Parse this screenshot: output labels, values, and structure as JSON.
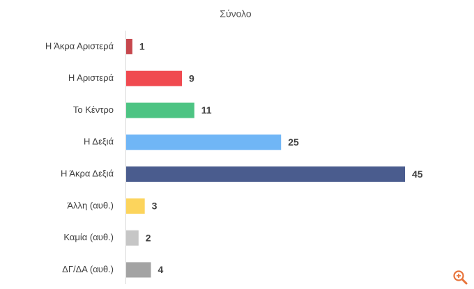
{
  "chart_data": {
    "type": "bar",
    "orientation": "horizontal",
    "title": "Σύνολο",
    "categories": [
      "Η Άκρα Αριστερά",
      "Η Αριστερά",
      "Το Κέντρο",
      "Η Δεξιά",
      "Η Άκρα Δεξιά",
      "Άλλη (αυθ.)",
      "Καμία (αυθ.)",
      "ΔΓ/ΔΑ (αυθ.)"
    ],
    "values": [
      1,
      9,
      11,
      25,
      45,
      3,
      2,
      4
    ],
    "colors": [
      "#c6474d",
      "#f04a50",
      "#4dc483",
      "#70b6f6",
      "#4a5c8e",
      "#fcd45c",
      "#c6c6c6",
      "#a3a3a3"
    ]
  }
}
